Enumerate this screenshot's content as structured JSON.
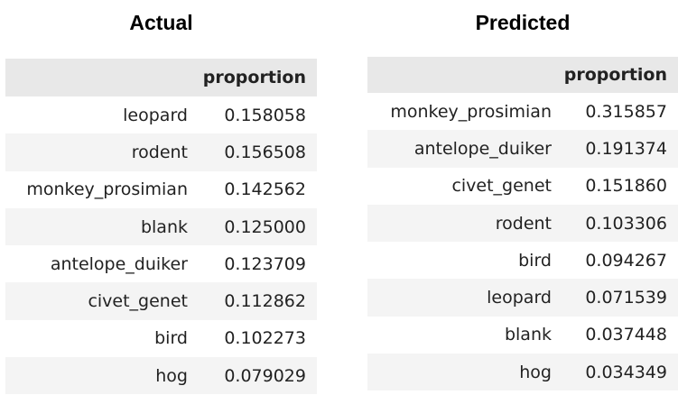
{
  "actual": {
    "title": "Actual",
    "column_header": "proportion",
    "rows": [
      {
        "label": "leopard",
        "value": "0.158058"
      },
      {
        "label": "rodent",
        "value": "0.156508"
      },
      {
        "label": "monkey_prosimian",
        "value": "0.142562"
      },
      {
        "label": "blank",
        "value": "0.125000"
      },
      {
        "label": "antelope_duiker",
        "value": "0.123709"
      },
      {
        "label": "civet_genet",
        "value": "0.112862"
      },
      {
        "label": "bird",
        "value": "0.102273"
      },
      {
        "label": "hog",
        "value": "0.079029"
      }
    ]
  },
  "predicted": {
    "title": "Predicted",
    "column_header": "proportion",
    "rows": [
      {
        "label": "monkey_prosimian",
        "value": "0.315857"
      },
      {
        "label": "antelope_duiker",
        "value": "0.191374"
      },
      {
        "label": "civet_genet",
        "value": "0.151860"
      },
      {
        "label": "rodent",
        "value": "0.103306"
      },
      {
        "label": "bird",
        "value": "0.094267"
      },
      {
        "label": "leopard",
        "value": "0.071539"
      },
      {
        "label": "blank",
        "value": "0.037448"
      },
      {
        "label": "hog",
        "value": "0.034349"
      }
    ]
  }
}
